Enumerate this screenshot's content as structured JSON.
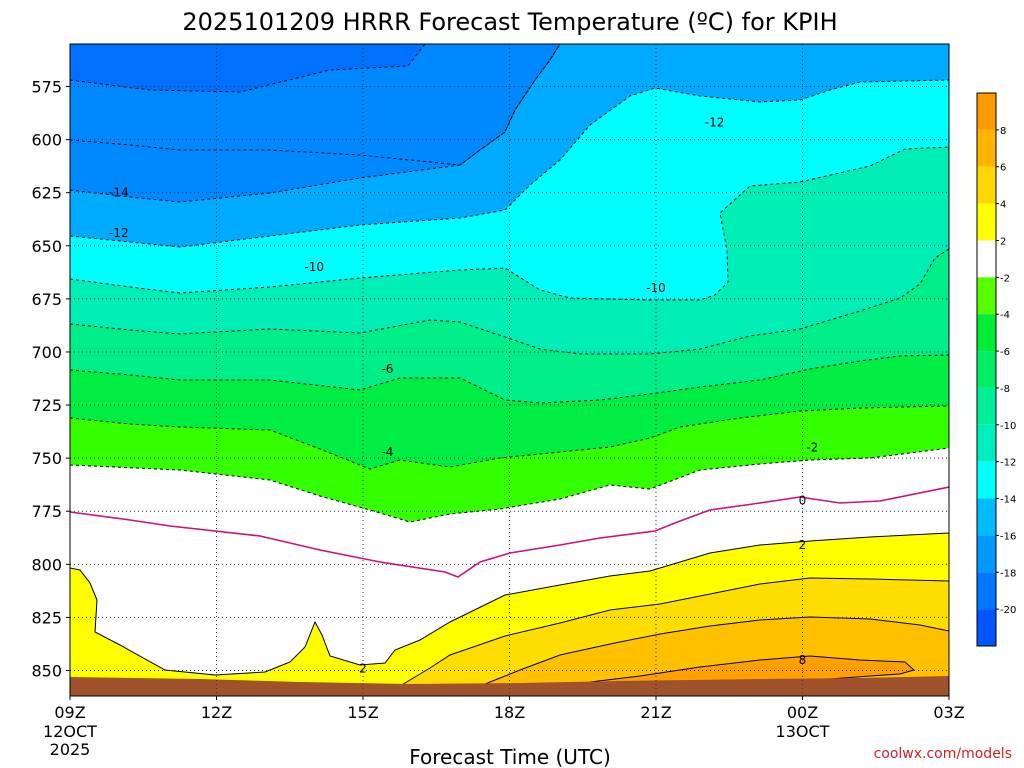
{
  "chart_data": {
    "type": "heatmap",
    "title": "2025101209 HRRR Forecast Temperature (ºC) for KPIH",
    "xlabel": "Forecast Time (UTC)",
    "ylabel": "",
    "credit": "coolwx.com/models",
    "x_ticks": [
      {
        "label": "09Z",
        "sub": [
          "12OCT",
          "2025"
        ]
      },
      {
        "label": "12Z",
        "sub": []
      },
      {
        "label": "15Z",
        "sub": []
      },
      {
        "label": "18Z",
        "sub": []
      },
      {
        "label": "21Z",
        "sub": []
      },
      {
        "label": "00Z",
        "sub": [
          "13OCT"
        ]
      },
      {
        "label": "03Z",
        "sub": []
      }
    ],
    "x_range": [
      "2025-10-12T09Z",
      "2025-10-13T03Z"
    ],
    "y_ticks": [
      575,
      600,
      625,
      650,
      675,
      700,
      725,
      750,
      775,
      800,
      825,
      850
    ],
    "y_range": [
      555,
      862
    ],
    "y_unit": "hPa",
    "colorbar": {
      "labels": [
        "8",
        "6",
        "4",
        "2",
        "-2",
        "-4",
        "-6",
        "-8",
        "-10",
        "-12",
        "-14",
        "-16",
        "-18",
        "-20"
      ],
      "colors": [
        "#ff9900",
        "#ffb400",
        "#ffd700",
        "#ffff00",
        "#ffffff",
        "#55ff00",
        "#00ee33",
        "#00ee66",
        "#00ee99",
        "#00eebb",
        "#00ffff",
        "#00bbff",
        "#0099ff",
        "#0077ff",
        "#0055ff"
      ]
    },
    "contour_labels": [
      {
        "text": "-12",
        "hour": 22.2,
        "p": 592
      },
      {
        "text": "-14",
        "hour": 10.0,
        "p": 625
      },
      {
        "text": "-12",
        "hour": 10.0,
        "p": 644
      },
      {
        "text": "-10",
        "hour": 14.0,
        "p": 660
      },
      {
        "text": "-10",
        "hour": 21.0,
        "p": 670
      },
      {
        "text": "-6",
        "hour": 15.5,
        "p": 708
      },
      {
        "text": "-4",
        "hour": 15.5,
        "p": 747
      },
      {
        "text": "-2",
        "hour": 24.2,
        "p": 745
      },
      {
        "text": "0",
        "hour": 24.0,
        "p": 770
      },
      {
        "text": "2",
        "hour": 24.0,
        "p": 791
      },
      {
        "text": "2",
        "hour": 15.0,
        "p": 849
      },
      {
        "text": "8",
        "hour": 24.0,
        "p": 845
      }
    ],
    "grid": true
  }
}
